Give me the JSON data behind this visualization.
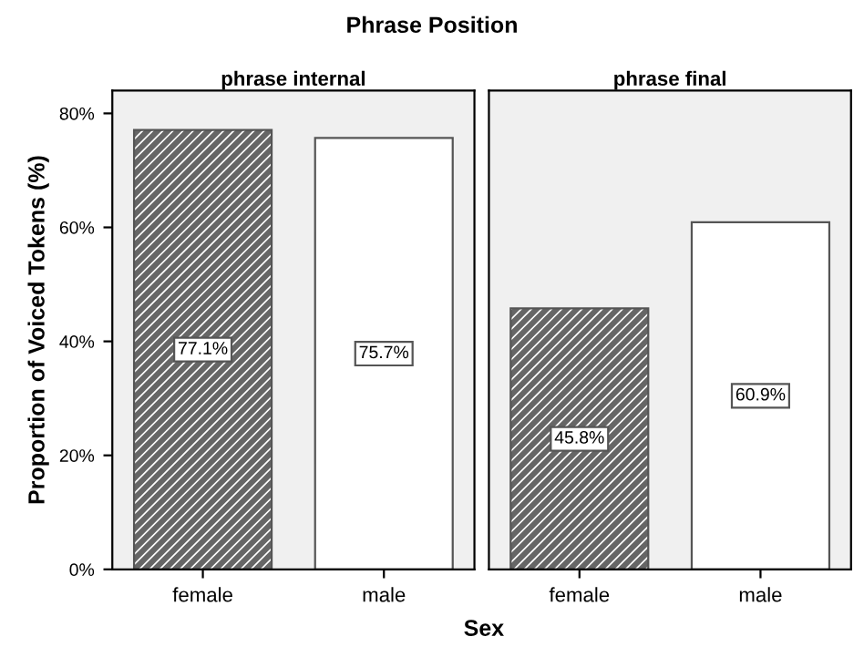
{
  "chart_data": [
    {
      "type": "bar",
      "title": "Phrase Position",
      "subtitle": "phrase internal",
      "xlabel": "Sex",
      "ylabel": "Proportion of Voiced Tokens (%)",
      "categories": [
        "female",
        "male"
      ],
      "values": [
        77.1,
        75.7
      ],
      "colors": [
        "#666666",
        "#ffffff"
      ],
      "value_labels": [
        "77.1%",
        "75.7%"
      ],
      "ylim": [
        0,
        84
      ],
      "yticks": [
        {
          "value": 0,
          "label": "0%"
        },
        {
          "value": 20,
          "label": "20%"
        },
        {
          "value": 40,
          "label": "40%"
        },
        {
          "value": 60,
          "label": "60%"
        },
        {
          "value": 80,
          "label": "80%"
        }
      ],
      "grid": false
    },
    {
      "type": "bar",
      "subtitle": "phrase final",
      "categories": [
        "female",
        "male"
      ],
      "values": [
        45.8,
        60.9
      ],
      "colors": [
        "#666666",
        "#ffffff"
      ],
      "value_labels": [
        "45.8%",
        "60.9%"
      ],
      "ylim": [
        0,
        84
      ],
      "tick_labels": "x",
      "grid": false
    }
  ]
}
